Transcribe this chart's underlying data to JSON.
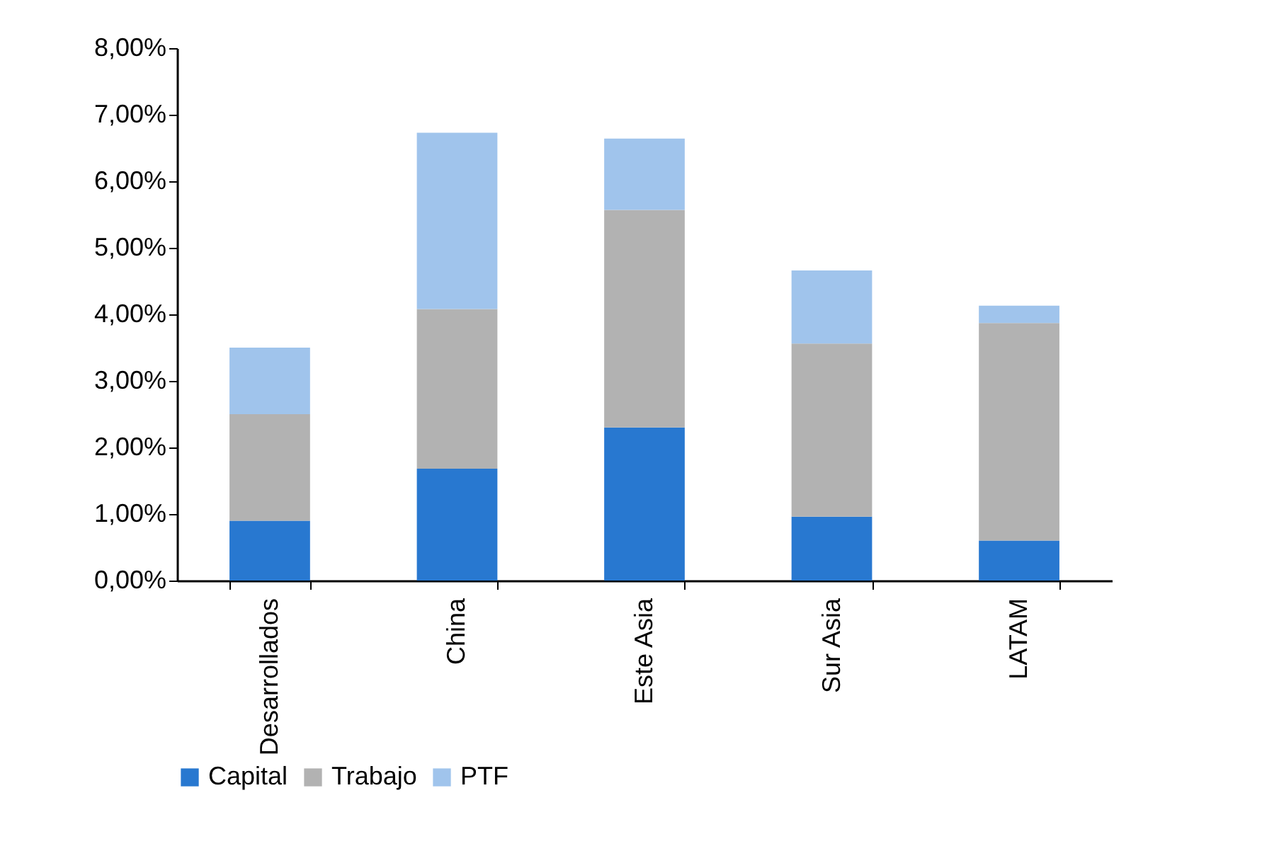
{
  "chart_data": {
    "type": "bar",
    "stacked": true,
    "categories": [
      "Desarrollados",
      "China",
      "Este Asia",
      "Sur Asia",
      "LATAM"
    ],
    "series": [
      {
        "name": "Capital",
        "color": "#2878d0",
        "values": [
          0.9,
          1.68,
          2.3,
          0.96,
          0.6
        ]
      },
      {
        "name": "Trabajo",
        "color": "#b2b2b2",
        "values": [
          1.6,
          2.4,
          3.27,
          2.6,
          3.27
        ]
      },
      {
        "name": "PTF",
        "color": "#a0c4ec",
        "values": [
          1.0,
          2.65,
          1.07,
          1.1,
          0.26
        ]
      }
    ],
    "ylim": [
      0,
      8
    ],
    "yticks": [
      {
        "value": 0,
        "label": "0,00%"
      },
      {
        "value": 1,
        "label": "1,00%"
      },
      {
        "value": 2,
        "label": "2,00%"
      },
      {
        "value": 3,
        "label": "3,00%"
      },
      {
        "value": 4,
        "label": "4,00%"
      },
      {
        "value": 5,
        "label": "5,00%"
      },
      {
        "value": 6,
        "label": "6,00%"
      },
      {
        "value": 7,
        "label": "7,00%"
      },
      {
        "value": 8,
        "label": "8,00%"
      }
    ],
    "grid": false,
    "legend": "bottom"
  }
}
